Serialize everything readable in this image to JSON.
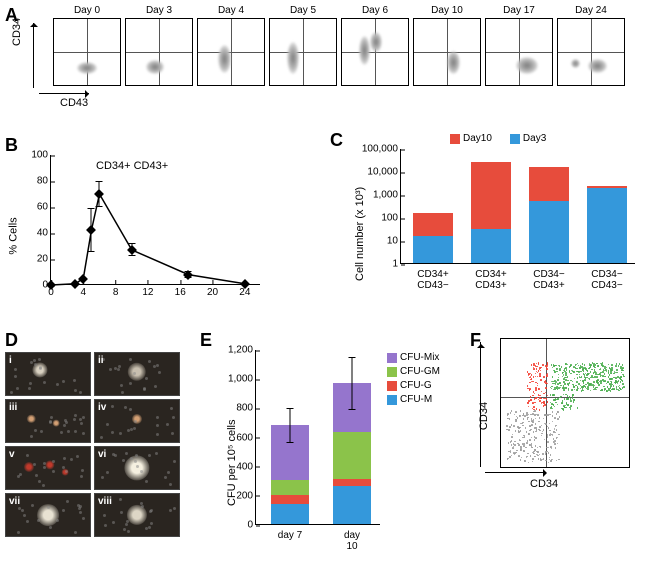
{
  "colors": {
    "red": "#e74c3c",
    "blue": "#3498db",
    "green": "#8bc34a",
    "purple": "#9575cd",
    "black": "#000000",
    "grid": "#cccccc",
    "micro_bg": "#2a2520",
    "scatter_green": "#4caf50",
    "scatter_red": "#f44336",
    "scatter_gray": "#9e9e9e"
  },
  "panelA": {
    "label": "A",
    "y_axis": "CD34",
    "x_axis": "CD43",
    "days": [
      "Day 0",
      "Day 3",
      "Day 4",
      "Day 5",
      "Day 6",
      "Day 10",
      "Day 17",
      "Day 24"
    ]
  },
  "panelB": {
    "label": "B",
    "yaxis_title": "% Cells",
    "series_label": "CD34+ CD43+",
    "ylim": [
      0,
      100
    ],
    "ytick_step": 20,
    "x_values": [
      0,
      3,
      4,
      5,
      6,
      10,
      17,
      24
    ],
    "y_values": [
      0,
      1,
      5,
      42,
      70,
      27,
      8,
      1
    ],
    "y_err": [
      0,
      0,
      0,
      17,
      10,
      5,
      3,
      0
    ],
    "xticks": [
      0,
      4,
      8,
      12,
      16,
      20,
      24
    ]
  },
  "panelC": {
    "label": "C",
    "yaxis_title": "Cell number (x 10³)",
    "ylim_log": [
      1,
      100000
    ],
    "yticks": [
      "1",
      "10",
      "100",
      "1,000",
      "10,000",
      "100,000"
    ],
    "categories": [
      "CD34+\nCD43−",
      "CD34+\nCD43+",
      "CD34−\nCD43+",
      "CD34−\nCD43−"
    ],
    "legend": [
      {
        "label": "Day10",
        "color": "#e74c3c"
      },
      {
        "label": "Day3",
        "color": "#3498db"
      }
    ],
    "day3_values": [
      15,
      30,
      500,
      1800
    ],
    "day10_values": [
      150,
      25000,
      15000,
      2200
    ]
  },
  "panelD": {
    "label": "D",
    "items": [
      "i",
      "ii",
      "iii",
      "iv",
      "v",
      "vi",
      "vii",
      "viii"
    ]
  },
  "panelE": {
    "label": "E",
    "yaxis_title": "CFU per 10⁵ cells",
    "ylim": [
      0,
      1200
    ],
    "ytick_step": 200,
    "categories": [
      "day 7",
      "day 10"
    ],
    "series": [
      {
        "name": "CFU-Mix",
        "color": "#9575cd"
      },
      {
        "name": "CFU-GM",
        "color": "#8bc34a"
      },
      {
        "name": "CFU-G",
        "color": "#e74c3c"
      },
      {
        "name": "CFU-M",
        "color": "#3498db"
      }
    ],
    "stacks": {
      "day 7": {
        "CFU-M": 140,
        "CFU-G": 60,
        "CFU-GM": 100,
        "CFU-Mix": 380
      },
      "day 10": {
        "CFU-M": 260,
        "CFU-G": 50,
        "CFU-GM": 320,
        "CFU-Mix": 340
      }
    },
    "err": {
      "day 7": 120,
      "day 10": 180
    }
  },
  "panelF": {
    "label": "F",
    "y_axis": "CD34",
    "x_axis": "CD34"
  }
}
